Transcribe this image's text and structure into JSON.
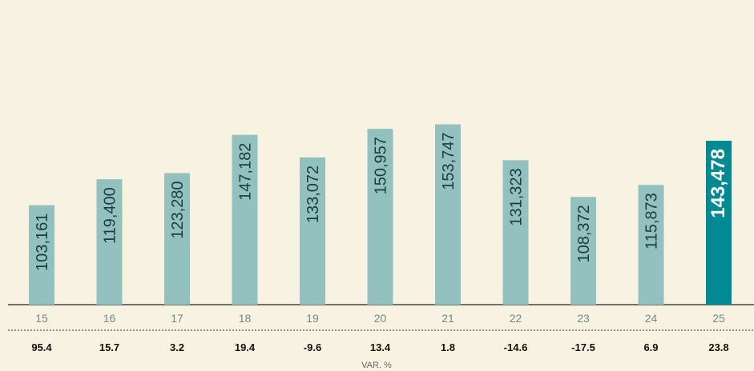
{
  "chart_data": {
    "type": "bar",
    "categories": [
      "15",
      "16",
      "17",
      "18",
      "19",
      "20",
      "21",
      "22",
      "23",
      "24",
      "25"
    ],
    "values": [
      103161,
      119400,
      123280,
      147182,
      133072,
      150957,
      153747,
      131323,
      108372,
      115873,
      143478
    ],
    "value_labels": [
      "103,161",
      "119,400",
      "123,280",
      "147,182",
      "133,072",
      "150,957",
      "153,747",
      "131,323",
      "108,372",
      "115,873",
      "143,478"
    ],
    "variation": [
      "95.4",
      "15.7",
      "3.2",
      "19.4",
      "-9.6",
      "13.4",
      "1.8",
      "-14.6",
      "-17.5",
      "6.9",
      "23.8"
    ],
    "variation_label": "VAR. %",
    "highlight_index": 10,
    "ylim": [
      0,
      160000
    ],
    "grid": false,
    "colors": {
      "bar": "#93c1c0",
      "bar_highlight": "#008b94",
      "background": "#f7f2e1",
      "label_text": "#1d3c3d",
      "label_text_highlight": "#ffffff",
      "axis": "#444444",
      "category_text": "#6c8c8c",
      "variation_text": "#111111"
    }
  }
}
